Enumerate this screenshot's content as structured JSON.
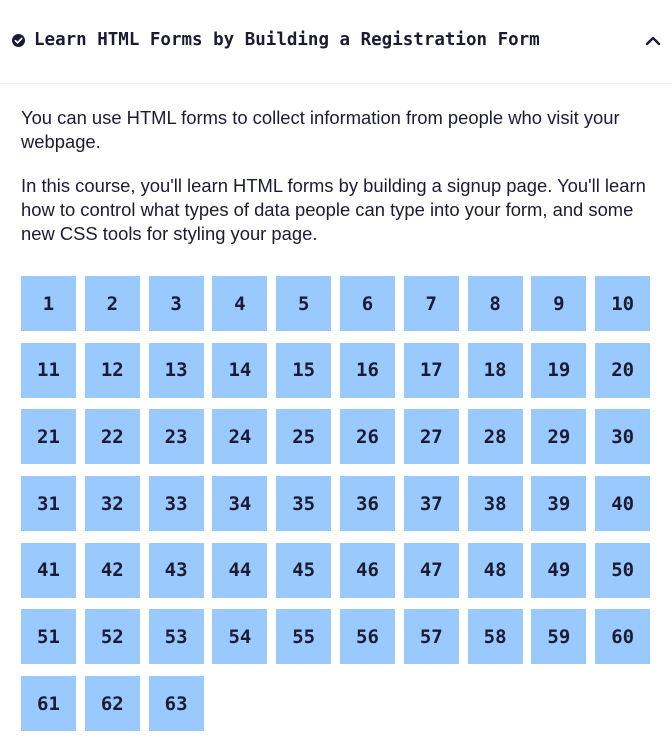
{
  "header": {
    "title": "Learn HTML Forms by Building a Registration Form",
    "status_icon": "check-circle-icon",
    "toggle_icon": "chevron-up-icon"
  },
  "description": {
    "paragraphs": [
      "You can use HTML forms to collect information from people who visit your webpage.",
      "In this course, you'll learn HTML forms by building a signup page. You'll learn how to control what types of data people can type into your form, and some new CSS tools for styling your page."
    ]
  },
  "steps": [
    "1",
    "2",
    "3",
    "4",
    "5",
    "6",
    "7",
    "8",
    "9",
    "10",
    "11",
    "12",
    "13",
    "14",
    "15",
    "16",
    "17",
    "18",
    "19",
    "20",
    "21",
    "22",
    "23",
    "24",
    "25",
    "26",
    "27",
    "28",
    "29",
    "30",
    "31",
    "32",
    "33",
    "34",
    "35",
    "36",
    "37",
    "38",
    "39",
    "40",
    "41",
    "42",
    "43",
    "44",
    "45",
    "46",
    "47",
    "48",
    "49",
    "50",
    "51",
    "52",
    "53",
    "54",
    "55",
    "56",
    "57",
    "58",
    "59",
    "60",
    "61",
    "62",
    "63"
  ],
  "colors": {
    "step_background": "#99c9ff",
    "text": "#1b1b32",
    "divider": "#ececf0"
  }
}
